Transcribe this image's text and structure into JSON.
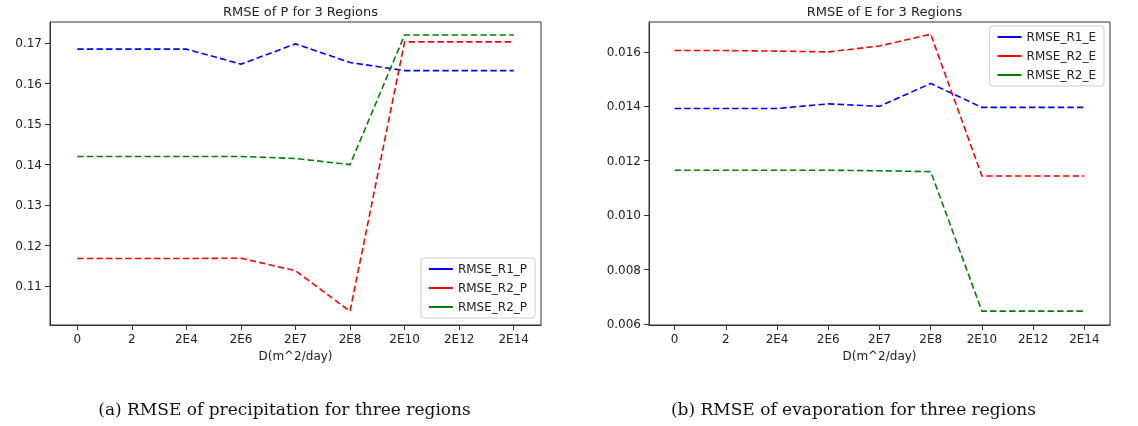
{
  "chart_data": [
    {
      "type": "line",
      "title": "RMSE of P for 3 Regions",
      "xlabel": "D(m^2/day)",
      "annotations": [
        "(a) RMSE of precipitation for three regions"
      ],
      "categories": [
        "0",
        "2",
        "2E4",
        "2E6",
        "2E7",
        "2E8",
        "2E10",
        "2E12",
        "2E14"
      ],
      "series": [
        {
          "name": "RMSE_R1_P",
          "color": "#0000ff",
          "values": [
            0.1685,
            0.1685,
            0.1685,
            0.1648,
            0.1698,
            0.1652,
            0.1632,
            0.1632,
            0.1632
          ]
        },
        {
          "name": "RMSE_R2_P",
          "color": "#ff0000",
          "values": [
            0.1168,
            0.1168,
            0.1168,
            0.1169,
            0.1138,
            0.1038,
            0.1703,
            0.1703,
            0.1703
          ]
        },
        {
          "name": "RMSE_R2_P",
          "color": "#008000",
          "values": [
            0.142,
            0.142,
            0.142,
            0.142,
            0.1415,
            0.14,
            0.172,
            0.172,
            0.172
          ]
        }
      ],
      "ylim": [
        0.1004,
        0.1752
      ],
      "yticks": [
        0.11,
        0.12,
        0.13,
        0.14,
        0.15,
        0.16,
        0.17
      ],
      "grid": false,
      "legend": "bottom right",
      "marker": "none",
      "line_style": "dashed"
    },
    {
      "type": "line",
      "title": "RMSE of E for 3 Regions",
      "xlabel": "D(m^2/day)",
      "annotations": [
        "(b) RMSE of evaporation for three regions"
      ],
      "categories": [
        "0",
        "2",
        "2E4",
        "2E6",
        "2E7",
        "2E8",
        "2E10",
        "2E12",
        "2E14"
      ],
      "series": [
        {
          "name": "RMSE_R1_E",
          "color": "#0000ff",
          "values": [
            0.01392,
            0.01392,
            0.01392,
            0.01409,
            0.014,
            0.01484,
            0.01396,
            0.01396,
            0.01396
          ]
        },
        {
          "name": "RMSE_R2_E",
          "color": "#ff0000",
          "values": [
            0.01605,
            0.01605,
            0.01603,
            0.016,
            0.01622,
            0.01665,
            0.01144,
            0.01144,
            0.01144
          ]
        },
        {
          "name": "RMSE_R2_E",
          "color": "#008000",
          "values": [
            0.01165,
            0.01165,
            0.01165,
            0.01165,
            0.01163,
            0.0116,
            0.00647,
            0.00647,
            0.00647
          ]
        }
      ],
      "ylim": [
        0.00596,
        0.0171
      ],
      "yticks": [
        0.006,
        0.008,
        {
          "value": 0.01,
          "label": "0.010"
        },
        0.012,
        0.014,
        0.016
      ],
      "grid": false,
      "legend": "top right",
      "marker": "none",
      "line_style": "dashed"
    }
  ]
}
